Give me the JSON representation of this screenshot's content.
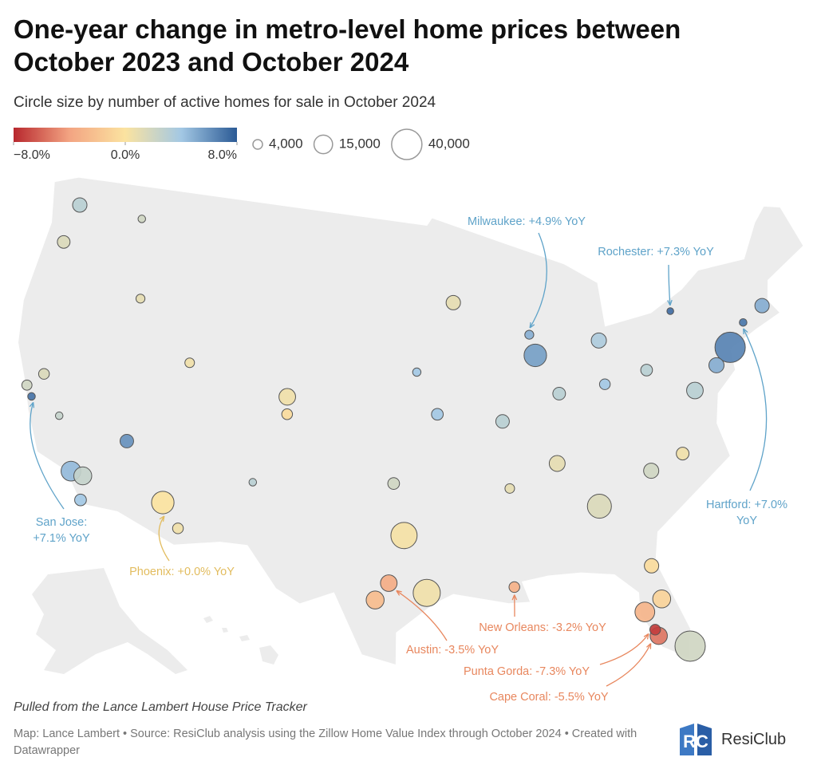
{
  "map": {
    "type": "bubble-map",
    "title": "One-year change in metro-level home prices between October 2023 and October 2024",
    "subtitle": "Circle size by number of active homes for sale in October 2024",
    "color_legend": {
      "ticks": [
        {
          "value": -8,
          "label": "−8.0%"
        },
        {
          "value": 0,
          "label": "0.0%"
        },
        {
          "value": 8,
          "label": "8.0%"
        }
      ],
      "colors": [
        "#b8282e",
        "#f3a482",
        "#fbe3a0",
        "#a3c8e4",
        "#2b5a95"
      ]
    },
    "size_legend": {
      "ticks": [
        {
          "value": 4000,
          "label": "4,000"
        },
        {
          "value": 15000,
          "label": "15,000"
        },
        {
          "value": 40000,
          "label": "40,000"
        }
      ]
    },
    "metros": [
      {
        "lon": -122.3,
        "lat": 47.6,
        "change": 3.0,
        "homes": 9000
      },
      {
        "lon": -122.7,
        "lat": 45.5,
        "change": 1.5,
        "homes": 7000
      },
      {
        "lon": -117.4,
        "lat": 47.7,
        "change": 2.0,
        "homes": 2500
      },
      {
        "lon": -116.2,
        "lat": 43.6,
        "change": 1.0,
        "homes": 3500
      },
      {
        "lon": -122.4,
        "lat": 37.8,
        "change": 2.0,
        "homes": 4500
      },
      {
        "lon": -121.9,
        "lat": 37.3,
        "change": 7.1,
        "homes": 2500,
        "label": "San Jose: +7.1% YoY",
        "label_color": "#5fa3c9"
      },
      {
        "lon": -121.5,
        "lat": 38.6,
        "change": 1.5,
        "homes": 5000
      },
      {
        "lon": -119.8,
        "lat": 36.7,
        "change": 2.5,
        "homes": 2500
      },
      {
        "lon": -118.2,
        "lat": 34.05,
        "change": 4.5,
        "homes": 17000
      },
      {
        "lon": -117.4,
        "lat": 33.95,
        "change": 2.5,
        "homes": 14000
      },
      {
        "lon": -117.2,
        "lat": 32.7,
        "change": 4.0,
        "homes": 6000
      },
      {
        "lon": -115.1,
        "lat": 36.2,
        "change": 6.0,
        "homes": 8000
      },
      {
        "lon": -112.1,
        "lat": 33.4,
        "change": 0.0,
        "homes": 22000,
        "label": "Phoenix: +0.0% YoY",
        "label_color": "#e2bc5e"
      },
      {
        "lon": -110.9,
        "lat": 32.2,
        "change": 0.5,
        "homes": 5000
      },
      {
        "lon": -111.9,
        "lat": 40.8,
        "change": 0.5,
        "homes": 4000
      },
      {
        "lon": -104.9,
        "lat": 39.7,
        "change": 0.5,
        "homes": 12000
      },
      {
        "lon": -104.8,
        "lat": 38.8,
        "change": -0.5,
        "homes": 5000
      },
      {
        "lon": -106.6,
        "lat": 35.1,
        "change": 3.0,
        "homes": 2500
      },
      {
        "lon": -96.8,
        "lat": 32.8,
        "change": 0.3,
        "homes": 30000
      },
      {
        "lon": -95.4,
        "lat": 29.8,
        "change": 0.5,
        "homes": 32000
      },
      {
        "lon": -97.7,
        "lat": 30.3,
        "change": -3.5,
        "homes": 12000,
        "label": "Austin: -3.5% YoY",
        "label_color": "#e8875e"
      },
      {
        "lon": -98.5,
        "lat": 29.4,
        "change": -2.5,
        "homes": 14000
      },
      {
        "lon": -97.5,
        "lat": 35.5,
        "change": 2.0,
        "homes": 6000
      },
      {
        "lon": -94.6,
        "lat": 39.1,
        "change": 4.0,
        "homes": 6000
      },
      {
        "lon": -96.0,
        "lat": 41.3,
        "change": 4.0,
        "homes": 3000
      },
      {
        "lon": -93.3,
        "lat": 44.9,
        "change": 1.0,
        "homes": 9000
      },
      {
        "lon": -87.6,
        "lat": 41.9,
        "change": 5.5,
        "homes": 22000
      },
      {
        "lon": -87.9,
        "lat": 43.0,
        "change": 4.9,
        "homes": 3500,
        "label": "Milwaukee: +4.9% YoY",
        "label_color": "#5fa3c9"
      },
      {
        "lon": -83.0,
        "lat": 42.3,
        "change": 3.5,
        "homes": 10000
      },
      {
        "lon": -90.2,
        "lat": 38.6,
        "change": 3.0,
        "homes": 8000
      },
      {
        "lon": -86.2,
        "lat": 39.8,
        "change": 3.0,
        "homes": 7000
      },
      {
        "lon": -83.0,
        "lat": 40.0,
        "change": 4.0,
        "homes": 5000
      },
      {
        "lon": -86.8,
        "lat": 36.2,
        "change": 1.0,
        "homes": 11000
      },
      {
        "lon": -84.4,
        "lat": 33.75,
        "change": 1.5,
        "homes": 25000
      },
      {
        "lon": -80.8,
        "lat": 35.2,
        "change": 2.0,
        "homes": 10000
      },
      {
        "lon": -78.6,
        "lat": 35.8,
        "change": 0.5,
        "homes": 7000
      },
      {
        "lon": -82.5,
        "lat": 27.95,
        "change": -3.0,
        "homes": 17000
      },
      {
        "lon": -81.4,
        "lat": 28.5,
        "change": -1.0,
        "homes": 14000
      },
      {
        "lon": -81.7,
        "lat": 30.3,
        "change": -0.5,
        "homes": 9000
      },
      {
        "lon": -80.2,
        "lat": 25.8,
        "change": 2.0,
        "homes": 40000
      },
      {
        "lon": -81.9,
        "lat": 26.6,
        "change": -5.5,
        "homes": 13000,
        "label": "Cape Coral: -5.5% YoY",
        "label_color": "#e8875e"
      },
      {
        "lon": -82.05,
        "lat": 26.95,
        "change": -7.3,
        "homes": 5000,
        "label": "Punta Gorda: -7.3% YoY",
        "label_color": "#e8875e"
      },
      {
        "lon": -90.1,
        "lat": 29.95,
        "change": -3.2,
        "homes": 5000,
        "label": "New Orleans: -3.2% YoY",
        "label_color": "#e8875e"
      },
      {
        "lon": -77.0,
        "lat": 38.9,
        "change": 3.0,
        "homes": 12000
      },
      {
        "lon": -75.2,
        "lat": 39.95,
        "change": 5.0,
        "homes": 10000
      },
      {
        "lon": -74.0,
        "lat": 40.7,
        "change": 6.5,
        "homes": 40000
      },
      {
        "lon": -72.7,
        "lat": 41.8,
        "change": 7.0,
        "homes": 2500,
        "label": "Hartford: +7.0% YoY",
        "label_color": "#5fa3c9"
      },
      {
        "lon": -71.1,
        "lat": 42.4,
        "change": 5.0,
        "homes": 9000
      },
      {
        "lon": -77.6,
        "lat": 43.2,
        "change": 7.3,
        "homes": 2000,
        "label": "Rochester: +7.3% YoY",
        "label_color": "#5fa3c9"
      },
      {
        "lon": -80.0,
        "lat": 40.4,
        "change": 3.0,
        "homes": 6000
      },
      {
        "lon": -90.0,
        "lat": 35.1,
        "change": 1.0,
        "homes": 4000
      }
    ],
    "note": "Pulled from the Lance Lambert House Price Tracker",
    "source": "Map: Lance Lambert • Source: ResiClub analysis using the Zillow Home Value Index through October 2024 • Created with Datawrapper",
    "logo": "ResiClub"
  }
}
